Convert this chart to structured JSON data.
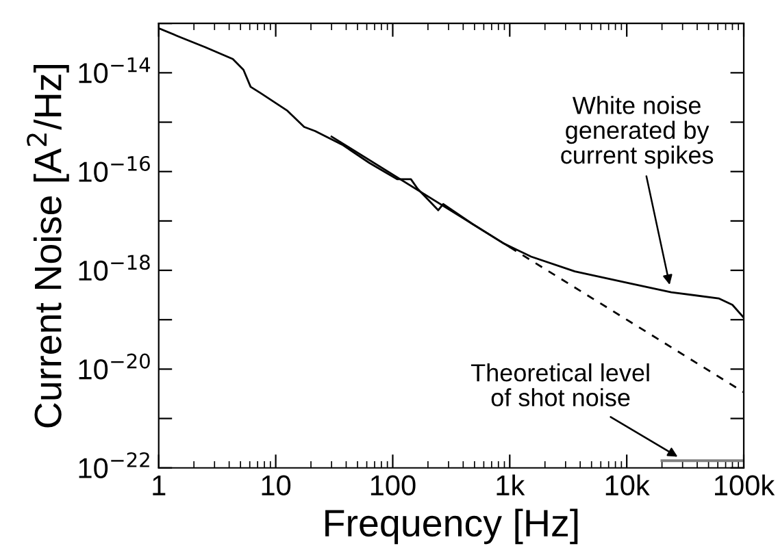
{
  "chart_data": {
    "type": "line",
    "xlabel": "Frequency [Hz]",
    "ylabel": "Current Noise [A$^{2}$/Hz]",
    "log": "xy",
    "grid": false,
    "legend": false,
    "xlim": [
      1,
      100000
    ],
    "ylim": [
      1e-22,
      1e-13
    ],
    "xticks": [
      1,
      10,
      100,
      {
        "value": 1000,
        "label": "1k"
      },
      {
        "value": 10000,
        "label": "10k"
      },
      {
        "value": 100000,
        "label": "100k"
      }
    ],
    "yticks": [
      {
        "value": 1e-22,
        "label": "10$^{−22}$"
      },
      {
        "value": 1e-21,
        "label": null
      },
      {
        "value": 1e-20,
        "label": "10$^{−20}$"
      },
      {
        "value": 1e-19,
        "label": null
      },
      {
        "value": 1e-18,
        "label": "10$^{−18}$"
      },
      {
        "value": 1e-17,
        "label": null
      },
      {
        "value": 1e-16,
        "label": "10$^{−16}$"
      },
      {
        "value": 1e-15,
        "label": null
      },
      {
        "value": 1e-14,
        "label": "10$^{−14}$"
      },
      {
        "value": 1e-13,
        "label": null
      }
    ],
    "series": [
      {
        "color": "#000000",
        "line_style": "solid",
        "x": [
          1,
          1.46,
          2.5,
          4.3,
          5.3,
          6.1,
          7.4,
          12.6,
          17.5,
          21.7,
          37,
          63,
          109,
          143,
          163,
          245,
          270,
          480,
          870,
          1520,
          3600,
          10800,
          24000,
          61000,
          80000,
          100000
        ],
        "values": [
          8e-14,
          5.5e-14,
          3.3e-14,
          1.9e-14,
          1.15e-14,
          5.2e-15,
          3.9e-15,
          1.7e-15,
          8e-16,
          6.6e-16,
          3.5e-16,
          1.5e-16,
          7e-17,
          7e-17,
          4.5e-17,
          1.65e-17,
          2.2e-17,
          8.7e-18,
          3.6e-18,
          1.9e-18,
          9.5e-19,
          5.4e-19,
          3.6e-19,
          2.7e-19,
          2e-19,
          1.1e-19
        ]
      },
      {
        "color": "#000000",
        "line_style": "solid",
        "x": [
          30,
          1000
        ],
        "values": [
          5.1e-16,
          2.95e-18
        ]
      },
      {
        "color": "#000000",
        "line_style": "dashed",
        "x": [
          1000,
          100000
        ],
        "values": [
          2.95e-18,
          3.4e-21
        ]
      },
      {
        "color": "#808080",
        "line_style": "solid",
        "x": [
          20000,
          100000
        ],
        "values": [
          1.4e-22,
          1.4e-22
        ]
      }
    ],
    "annotations": [
      {
        "text": "White noise\ngenerated by\ncurrent spikes",
        "x": 24000,
        "y": 3.6e-19
      },
      {
        "text": "Theoretical level\nof shot noise",
        "x": 31000,
        "y": 1.4e-22
      }
    ]
  }
}
